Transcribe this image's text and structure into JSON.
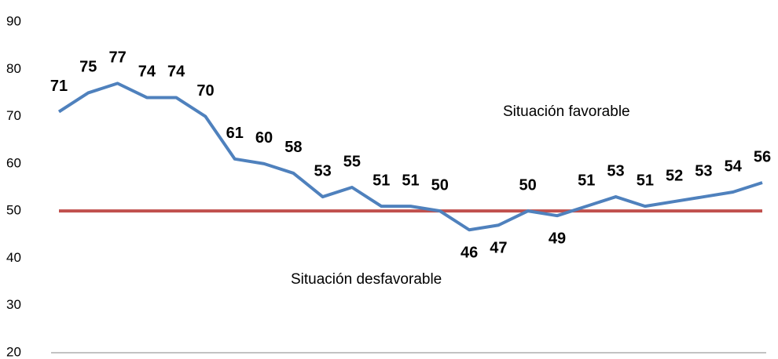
{
  "chart_data": {
    "type": "line",
    "series": [
      {
        "color": "#4f81bd",
        "values": [
          71,
          75,
          77,
          74,
          74,
          70,
          61,
          60,
          58,
          53,
          55,
          51,
          51,
          50,
          46,
          47,
          50,
          49,
          51,
          53,
          51,
          52,
          53,
          54,
          56
        ]
      }
    ],
    "reference_line": {
      "value": 50,
      "color": "#c0504d"
    },
    "annotations": [
      "Situación favorable",
      "Situación desfavorable"
    ],
    "ylim": [
      20,
      90
    ],
    "yticks": [
      20,
      30,
      40,
      50,
      60,
      70,
      80,
      90
    ],
    "grid": false
  }
}
